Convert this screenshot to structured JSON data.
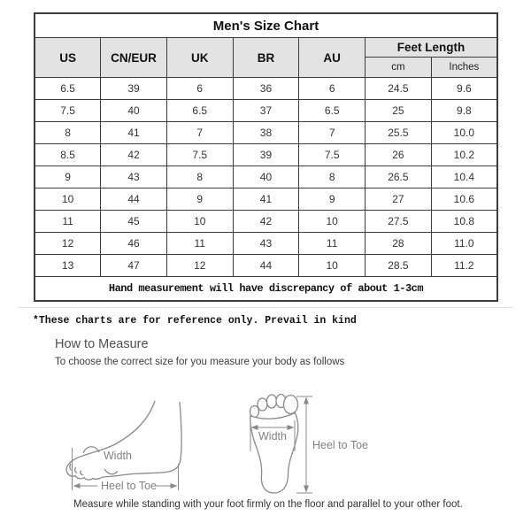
{
  "table": {
    "title": "Men's Size Chart",
    "columns": [
      "US",
      "CN/EUR",
      "UK",
      "BR",
      "AU"
    ],
    "feet_length_header": "Feet Length",
    "feet_length_sub": [
      "cm",
      "Inches"
    ],
    "rows": [
      [
        "6.5",
        "39",
        "6",
        "36",
        "6",
        "24.5",
        "9.6"
      ],
      [
        "7.5",
        "40",
        "6.5",
        "37",
        "6.5",
        "25",
        "9.8"
      ],
      [
        "8",
        "41",
        "7",
        "38",
        "7",
        "25.5",
        "10.0"
      ],
      [
        "8.5",
        "42",
        "7.5",
        "39",
        "7.5",
        "26",
        "10.2"
      ],
      [
        "9",
        "43",
        "8",
        "40",
        "8",
        "26.5",
        "10.4"
      ],
      [
        "10",
        "44",
        "9",
        "41",
        "9",
        "27",
        "10.6"
      ],
      [
        "11",
        "45",
        "10",
        "42",
        "10",
        "27.5",
        "10.8"
      ],
      [
        "12",
        "46",
        "11",
        "43",
        "11",
        "28",
        "11.0"
      ],
      [
        "13",
        "47",
        "12",
        "44",
        "10",
        "28.5",
        "11.2"
      ]
    ],
    "note": "Hand measurement will have discrepancy of about 1-3cm"
  },
  "reference_note": "*These charts are for reference only. Prevail in kind",
  "how_to_measure": {
    "heading": "How to Measure",
    "subtitle": "To choose the correct size for you measure your body as follows",
    "side_width_label": "Width",
    "side_heel_to_toe_label": "Heel to Toe",
    "top_width_label": "Width",
    "top_heel_to_toe_label": "Heel to Toe",
    "caption": "Measure while standing with your foot firmly on the floor and parallel to your other foot."
  },
  "colors": {
    "header_bg": "#e3e3e3",
    "table_border": "#3c3c3c",
    "diagram_line": "#8a8a8a",
    "body_text": "#333333"
  }
}
